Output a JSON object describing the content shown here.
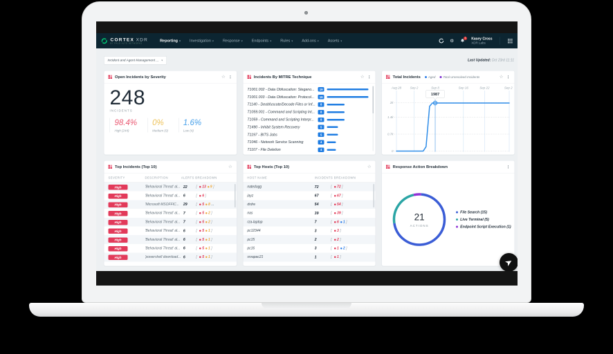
{
  "colors": {
    "red": "#e03250",
    "yellow": "#eda83d",
    "blue": "#2f7fe8",
    "high_badge": "#e23a5a",
    "mitre_badge": "#1e7ce2",
    "line_blue": "#2d8ce8",
    "brand_green": "#00c873",
    "navbar_bg": "#0c2531"
  },
  "nav": {
    "brand_title": "CORTEX",
    "brand_product": "XDR",
    "brand_sub": "BY PALO ALTO NETWORKS",
    "items": [
      {
        "label": "Reporting",
        "active": true
      },
      {
        "label": "Investigation",
        "active": false
      },
      {
        "label": "Response",
        "active": false
      },
      {
        "label": "Endpoints",
        "active": false
      },
      {
        "label": "Rules",
        "active": false
      },
      {
        "label": "Add-ons",
        "active": false
      },
      {
        "label": "Assets",
        "active": false
      }
    ],
    "notification_badge": "1",
    "user_name": "Kasey Cross",
    "user_org": "XDR Labs"
  },
  "subnav": {
    "dashboard_selector": "Incident and Agent Management ...",
    "last_updated_label": "Last Updated:",
    "last_updated_value": "Oct 23rd 11:11"
  },
  "cards": {
    "severity": {
      "title": "Open Incidents by Severity",
      "total": "248",
      "total_label": "INCIDENTS",
      "stats": [
        {
          "pct": "98.4%",
          "label": "High (244)",
          "color": "#ea5a73"
        },
        {
          "pct": "0%",
          "label": "Medium (0)",
          "color": "#eec35b"
        },
        {
          "pct": "1.6%",
          "label": "Low (4)",
          "color": "#49a1ea"
        }
      ]
    },
    "mitre": {
      "title": "Incidents By MITRE Technique",
      "rows": [
        {
          "label": "T1001.002 - Data Obfuscation: Stegano...",
          "count": 19
        },
        {
          "label": "T1001.003 - Data Obfuscation: Protocol...",
          "count": 19
        },
        {
          "label": "T1140 - Deobfuscate/Decode Files or Inf...",
          "count": 8
        },
        {
          "label": "T1059.001 - Command and Scripting Int...",
          "count": 8
        },
        {
          "label": "T1059 - Command and Scripting Interpr...",
          "count": 8
        },
        {
          "label": "T1490 - Inhibit System Recovery",
          "count": 5
        },
        {
          "label": "T1197 - BITS Jobs",
          "count": 5
        },
        {
          "label": "T1046 - Network Service Scanning",
          "count": 4
        },
        {
          "label": "T1107 - File Deletion",
          "count": 4
        }
      ]
    },
    "total_incidents": {
      "title": "Total Incidents",
      "legend": [
        {
          "label": "Aged",
          "color": "#2f7fe8"
        },
        {
          "label": "Total Unresolved Incidents",
          "color": "#7a2cd0"
        }
      ]
    },
    "top_incidents": {
      "title": "Top Incidents (Top 10)",
      "columns": [
        "SEVERITY",
        "DESCRIPTION",
        "ALERTS BREAKDOWN"
      ],
      "rows": [
        {
          "severity": "High",
          "description": "'Behavioral Threat' al...",
          "total": "22",
          "breakdown": [
            {
              "value": "13",
              "color": "red"
            },
            {
              "value": "9",
              "color": "yellow"
            }
          ],
          "more": false
        },
        {
          "severity": "High",
          "description": "'Behavioral Threat' al...",
          "total": "6",
          "breakdown": [
            {
              "value": "6",
              "color": "red"
            }
          ],
          "more": false
        },
        {
          "severity": "High",
          "description": "'Microsoft MSOFFIC...",
          "total": "29",
          "breakdown": [
            {
              "value": "5",
              "color": "red"
            },
            {
              "value": "8",
              "color": "yellow"
            }
          ],
          "more": true
        },
        {
          "severity": "High",
          "description": "'Behavioral Threat' al...",
          "total": "7",
          "breakdown": [
            {
              "value": "5",
              "color": "red"
            },
            {
              "value": "2",
              "color": "yellow"
            }
          ],
          "more": false
        },
        {
          "severity": "High",
          "description": "'Behavioral Threat' al...",
          "total": "7",
          "breakdown": [
            {
              "value": "5",
              "color": "red"
            },
            {
              "value": "2",
              "color": "yellow"
            }
          ],
          "more": false
        },
        {
          "severity": "High",
          "description": "'Behavioral Threat' al...",
          "total": "6",
          "breakdown": [
            {
              "value": "5",
              "color": "red"
            },
            {
              "value": "1",
              "color": "yellow"
            }
          ],
          "more": false
        },
        {
          "severity": "High",
          "description": "'Behavioral Threat' al...",
          "total": "6",
          "breakdown": [
            {
              "value": "5",
              "color": "red"
            },
            {
              "value": "1",
              "color": "yellow"
            }
          ],
          "more": false
        },
        {
          "severity": "High",
          "description": "'Behavioral Threat' al...",
          "total": "6",
          "breakdown": [
            {
              "value": "5",
              "color": "red"
            },
            {
              "value": "1",
              "color": "yellow"
            }
          ],
          "more": false
        },
        {
          "severity": "High",
          "description": "'powershell download...",
          "total": "6",
          "breakdown": [
            {
              "value": "5",
              "color": "red"
            },
            {
              "value": "1",
              "color": "yellow"
            }
          ],
          "more": false
        }
      ]
    },
    "top_hosts": {
      "title": "Top Hosts (Top 10)",
      "columns": [
        "HOST NAME",
        "INCIDENTS BREAKDOWN"
      ],
      "rows": [
        {
          "host": "natedogg",
          "total": "72",
          "breakdown": [
            {
              "value": "72",
              "color": "red"
            }
          ]
        },
        {
          "host": "jayz",
          "total": "67",
          "breakdown": [
            {
              "value": "67",
              "color": "red"
            }
          ]
        },
        {
          "host": "drdre",
          "total": "54",
          "breakdown": [
            {
              "value": "54",
              "color": "red"
            }
          ]
        },
        {
          "host": "nas",
          "total": "39",
          "breakdown": [
            {
              "value": "39",
              "color": "red"
            }
          ]
        },
        {
          "host": "rza-laptop",
          "total": "7",
          "breakdown": [
            {
              "value": "6",
              "color": "red"
            },
            {
              "value": "1",
              "color": "blue"
            }
          ]
        },
        {
          "host": "pc12344",
          "total": "3",
          "breakdown": [
            {
              "value": "3",
              "color": "red"
            }
          ]
        },
        {
          "host": "pc15",
          "total": "2",
          "breakdown": [
            {
              "value": "2",
              "color": "red"
            }
          ]
        },
        {
          "host": "pc16",
          "total": "3",
          "breakdown": [
            {
              "value": "1",
              "color": "red"
            },
            {
              "value": "2",
              "color": "blue"
            }
          ]
        },
        {
          "host": "srvapac21",
          "total": "1",
          "breakdown": [
            {
              "value": "1",
              "color": "red"
            }
          ]
        }
      ]
    },
    "response_actions": {
      "title": "Response Action Breakdown",
      "center_value": "21",
      "center_label": "ACTIONS",
      "legend": [
        {
          "label": "File Search (15)",
          "color": "#3b5dd6"
        },
        {
          "label": "Live Terminal (5)",
          "color": "#2ba5a5"
        },
        {
          "label": "Endpoint Script Execution (1)",
          "color": "#8f33d6"
        }
      ]
    }
  },
  "chart_data": [
    {
      "type": "line",
      "title": "Total Incidents",
      "x_ticks": [
        {
          "label": "Aug 28",
          "day": 0
        },
        {
          "label": "Sep 2",
          "day": 5
        },
        {
          "label": "Sep 8",
          "day": 11
        },
        {
          "label": "Sep 16",
          "day": 19
        },
        {
          "label": "Sep 22",
          "day": 25
        },
        {
          "label": "Sep 29",
          "day": 32
        }
      ],
      "y_ticks": [
        {
          "label": "2k",
          "value": 2000
        },
        {
          "label": "1.4k",
          "value": 1400
        },
        {
          "label": "0.7k",
          "value": 700
        },
        {
          "label": "0",
          "value": 0
        }
      ],
      "ylim": [
        0,
        2000
      ],
      "series": [
        {
          "name": "Aged",
          "color": "#2d8ce8",
          "points": [
            [
              0,
              2
            ],
            [
              7.6,
              2
            ],
            [
              8.4,
              180
            ],
            [
              9.4,
              1850
            ],
            [
              10.2,
              1987
            ],
            [
              32,
              1987
            ]
          ]
        }
      ],
      "tooltip": {
        "day": 11,
        "value": "1987"
      },
      "legend_position": "top"
    },
    {
      "type": "donut",
      "title": "Response Action Breakdown",
      "slices": [
        {
          "label": "Endpoint Script Execution",
          "value": 1,
          "color": "#8f33d6"
        },
        {
          "label": "File Search",
          "value": 15,
          "color": "#3b5dd6"
        },
        {
          "label": "Live Terminal",
          "value": 5,
          "color": "#2ba5a5"
        }
      ],
      "total": 21
    }
  ]
}
